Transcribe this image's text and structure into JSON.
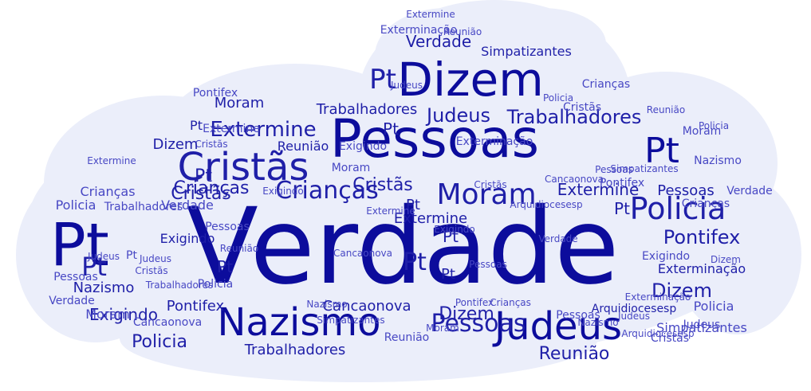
{
  "cloud": {
    "background_color": "#ffffff",
    "shape_color": "#ebeefa",
    "word_colors": [
      "#0c0c9c",
      "#1f1fa8",
      "#2b2bb0",
      "#4848c4"
    ],
    "words": [
      "Verdade",
      "Pessoas",
      "Dizem",
      "Pt",
      "Cristãs",
      "Nazismo",
      "Judeus",
      "Policia",
      "Moram",
      "Crianças",
      "Extermine",
      "Trabalhadores",
      "Pontifex",
      "Reunião",
      "Exigindo",
      "Simpatizantes",
      "Cancaonova",
      "Exterminação",
      "Arquidiocesesp"
    ]
  }
}
